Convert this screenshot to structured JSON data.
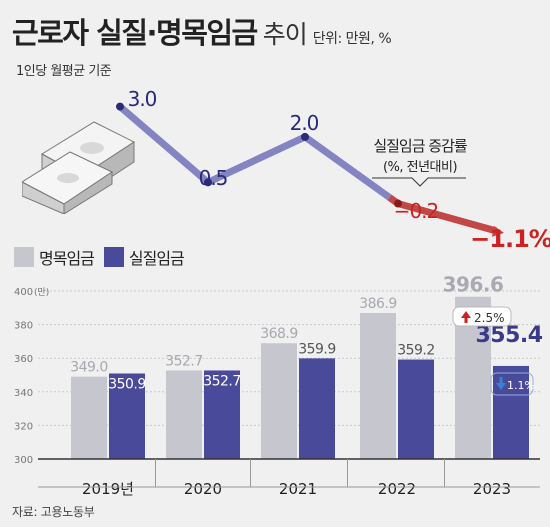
{
  "title": "근로자 실질·명목임금",
  "title_trend": "추이",
  "unit": "단위: 만원, %",
  "basis": "1인당 월평균 기준",
  "source": "자료: 고용노동부",
  "line_annotation": "실질임금 증감률",
  "line_annotation_sub": "(%, 전년대비)",
  "bar_unit_label": "(만)",
  "colors": {
    "nominal": "#c6c6ce",
    "real": "#4a4a9a",
    "line_pos": "#8484c2",
    "line_neg": "#c24848",
    "neg_text": "#cc2222",
    "badge_blue": "#3a7fd0",
    "badge_red": "#cc2222"
  },
  "icons": [
    "money-stack-icon",
    "up-arrow-icon",
    "down-arrow-icon"
  ],
  "chart_data": [
    {
      "type": "line",
      "title": "실질임금 증감률",
      "x": [
        "2019년",
        "2020",
        "2021",
        "2022",
        "2023"
      ],
      "y": [
        3.0,
        0.5,
        2.0,
        -0.2,
        -1.1
      ],
      "labels": [
        "3.0",
        "0.5",
        "2.0",
        "−0.2",
        "−1.1%"
      ]
    },
    {
      "type": "bar",
      "categories": [
        "2019년",
        "2020",
        "2021",
        "2022",
        "2023"
      ],
      "series": [
        {
          "name": "명목임금",
          "values": [
            349.0,
            352.7,
            368.9,
            386.9,
            396.6
          ],
          "labels": [
            "349.0",
            "352.7",
            "368.9",
            "386.9",
            "396.6"
          ]
        },
        {
          "name": "실질임금",
          "values": [
            350.9,
            352.7,
            359.9,
            359.2,
            355.4
          ],
          "labels": [
            "350.9",
            "352.7",
            "359.9",
            "359.2",
            "355.4"
          ]
        }
      ],
      "ylim": [
        300,
        400
      ],
      "yticks": [
        "300",
        "320",
        "340",
        "360",
        "380",
        "400"
      ],
      "ytick_values": [
        300,
        320,
        340,
        360,
        380,
        400
      ],
      "grid": true,
      "badges": [
        {
          "series": "명목임금",
          "category": "2023",
          "direction": "up",
          "text": "2.5%"
        },
        {
          "series": "실질임금",
          "category": "2023",
          "direction": "down",
          "text": "1.1%"
        }
      ]
    }
  ]
}
